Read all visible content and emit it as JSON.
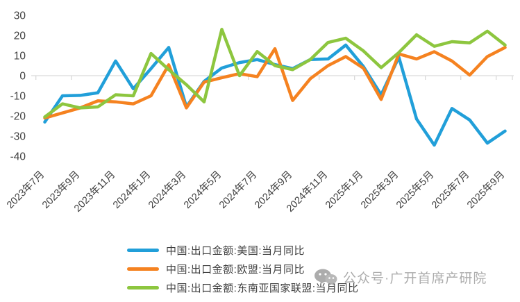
{
  "chart_data": {
    "type": "line",
    "title": "",
    "xlabel": "",
    "ylabel": "",
    "ylim": [
      -40,
      30
    ],
    "y_ticks": [
      30,
      20,
      10,
      0,
      -10,
      -20,
      -30,
      -40
    ],
    "grid": "zero-axis-only",
    "legend_position": "bottom-left",
    "categories": [
      "2023年7月",
      "2023年8月",
      "2023年9月",
      "2023年10月",
      "2023年11月",
      "2023年12月",
      "2024年1月",
      "2024年2月",
      "2024年3月",
      "2024年4月",
      "2024年5月",
      "2024年6月",
      "2024年7月",
      "2024年8月",
      "2024年9月",
      "2024年10月",
      "2024年11月",
      "2024年12月",
      "2025年1月",
      "2025年2月",
      "2025年3月",
      "2025年4月",
      "2025年5月",
      "2025年6月",
      "2025年7月",
      "2025年8月",
      "2025年9月"
    ],
    "x_tick_labels": [
      "2023年7月",
      "2023年9月",
      "2023年11月",
      "2024年1月",
      "2024年3月",
      "2024年5月",
      "2024年7月",
      "2024年9月",
      "2024年11月",
      "2025年1月",
      "2025年3月",
      "2025年5月",
      "2025年7月",
      "2025年9月"
    ],
    "series": [
      {
        "name": "中国:出口金额:美国:当月同比",
        "color": "#219FD9",
        "values": [
          -23,
          -10,
          -9.8,
          -8.5,
          7.3,
          -6.5,
          3.5,
          14,
          -15.5,
          -2.8,
          3.8,
          6.5,
          8,
          5.5,
          3.5,
          8,
          8.3,
          15.2,
          4.5,
          -9.5,
          9.2,
          -21.5,
          -34.5,
          -16.3,
          -22,
          -33.5,
          -27.5
        ]
      },
      {
        "name": "中国:出口金额:欧盟:当月同比",
        "color": "#F58220",
        "values": [
          -21,
          -18.5,
          -16,
          -12.5,
          -13,
          -14,
          -10,
          5.4,
          -16,
          -3.2,
          -1,
          1,
          -0.5,
          13.4,
          -12.3,
          -1.5,
          5,
          9.5,
          3.7,
          -11.8,
          10.8,
          8.3,
          11.9,
          7.3,
          0.3,
          9.5,
          14
        ]
      },
      {
        "name": "中国:出口金额:东南亚国家联盟:当月同比",
        "color": "#8DC63F",
        "values": [
          -20.5,
          -14,
          -16,
          -15.5,
          -9.5,
          -10,
          11,
          3,
          -4.5,
          -13,
          23,
          0,
          12,
          5,
          3,
          8,
          16.5,
          18.6,
          12.3,
          4,
          11.5,
          20.3,
          14.6,
          16.9,
          16.3,
          22.1,
          15.2
        ]
      }
    ],
    "axis_color": "#d9d9d9",
    "tick_label_color": "#404040"
  },
  "watermark": {
    "icon": "wechat-icon",
    "text": "公众号·广开首席产研院"
  }
}
